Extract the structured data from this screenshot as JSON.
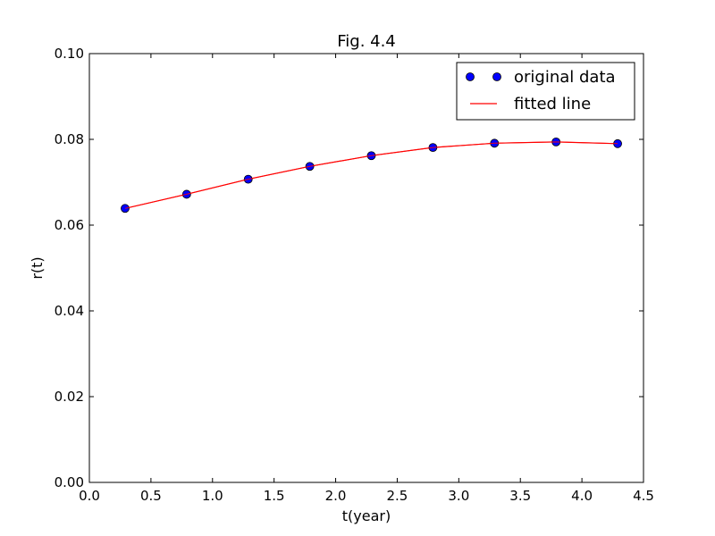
{
  "chart_data": {
    "type": "scatter",
    "title": "Fig. 4.4",
    "xlabel": "t(year)",
    "ylabel": "r(t)",
    "xlim": [
      0.0,
      4.5
    ],
    "ylim": [
      0.0,
      0.1
    ],
    "xticks": [
      "0.0",
      "0.5",
      "1.0",
      "1.5",
      "2.0",
      "2.5",
      "3.0",
      "3.5",
      "4.0",
      "4.5"
    ],
    "yticks": [
      "0.00",
      "0.02",
      "0.04",
      "0.06",
      "0.08",
      "0.10"
    ],
    "grid": false,
    "legend_position": "top-right",
    "series": [
      {
        "name": "original data",
        "kind": "markers",
        "color": "#0000ff",
        "x": [
          0.29,
          0.79,
          1.29,
          1.79,
          2.29,
          2.79,
          3.29,
          3.79,
          4.29
        ],
        "y": [
          0.0639,
          0.0672,
          0.0707,
          0.0737,
          0.0762,
          0.0781,
          0.0791,
          0.0794,
          0.079
        ]
      },
      {
        "name": "fitted line",
        "kind": "line",
        "color": "#ff0000",
        "x": [
          0.29,
          0.79,
          1.29,
          1.79,
          2.29,
          2.79,
          3.29,
          3.79,
          4.29
        ],
        "y": [
          0.0639,
          0.0672,
          0.0707,
          0.0737,
          0.0762,
          0.0781,
          0.0791,
          0.0794,
          0.079
        ]
      }
    ]
  }
}
